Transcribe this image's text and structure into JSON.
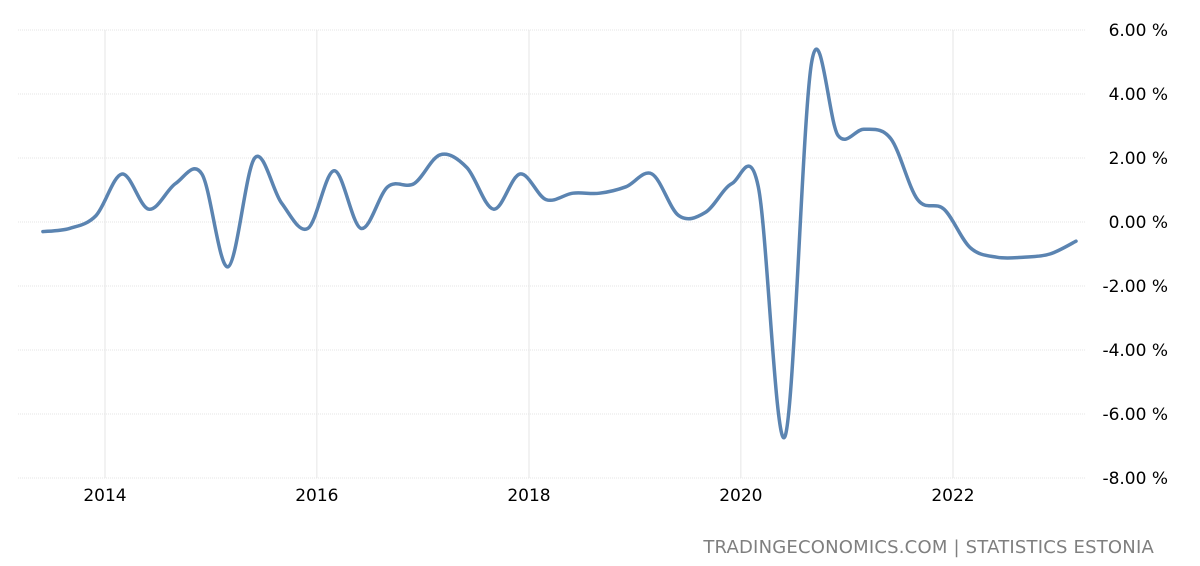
{
  "source": "TRADINGECONOMICS.COM | STATISTICS ESTONIA",
  "colors": {
    "line": "#5b84b1",
    "grid": "#e6e6e6",
    "tick_text": "#000000",
    "source_text": "#7f7f7f"
  },
  "chart_data": {
    "type": "line",
    "title": "",
    "xlabel": "",
    "ylabel": "",
    "grid": true,
    "x_ticks": [
      "2014",
      "2016",
      "2018",
      "2020",
      "2022"
    ],
    "y_ticks": [
      "6.00 %",
      "4.00 %",
      "2.00 %",
      "0.00 %",
      "-2.00 %",
      "-4.00 %",
      "-6.00 %",
      "-8.00 %"
    ],
    "ylim": [
      -8,
      6
    ],
    "xlim": [
      "2013-01-01",
      "2023-06-01"
    ],
    "series": [
      {
        "values": [
          {
            "x": "2013-06-01",
            "y": -0.3
          },
          {
            "x": "2013-09-01",
            "y": -0.2
          },
          {
            "x": "2013-12-01",
            "y": 0.2
          },
          {
            "x": "2014-03-01",
            "y": 1.5
          },
          {
            "x": "2014-06-01",
            "y": 0.4
          },
          {
            "x": "2014-09-01",
            "y": 1.2
          },
          {
            "x": "2014-12-01",
            "y": 1.5
          },
          {
            "x": "2015-03-01",
            "y": -1.4
          },
          {
            "x": "2015-06-01",
            "y": 2.0
          },
          {
            "x": "2015-09-01",
            "y": 0.6
          },
          {
            "x": "2015-12-01",
            "y": -0.2
          },
          {
            "x": "2016-03-01",
            "y": 1.6
          },
          {
            "x": "2016-06-01",
            "y": -0.2
          },
          {
            "x": "2016-09-01",
            "y": 1.1
          },
          {
            "x": "2016-12-01",
            "y": 1.2
          },
          {
            "x": "2017-03-01",
            "y": 2.1
          },
          {
            "x": "2017-06-01",
            "y": 1.7
          },
          {
            "x": "2017-09-01",
            "y": 0.4
          },
          {
            "x": "2017-12-01",
            "y": 1.5
          },
          {
            "x": "2018-03-01",
            "y": 0.7
          },
          {
            "x": "2018-06-01",
            "y": 0.9
          },
          {
            "x": "2018-09-01",
            "y": 0.9
          },
          {
            "x": "2018-12-01",
            "y": 1.1
          },
          {
            "x": "2019-03-01",
            "y": 1.5
          },
          {
            "x": "2019-06-01",
            "y": 0.2
          },
          {
            "x": "2019-09-01",
            "y": 0.3
          },
          {
            "x": "2019-12-01",
            "y": 1.2
          },
          {
            "x": "2020-03-01",
            "y": 1.1
          },
          {
            "x": "2020-06-01",
            "y": -6.7
          },
          {
            "x": "2020-09-01",
            "y": 5.0
          },
          {
            "x": "2020-12-01",
            "y": 2.7
          },
          {
            "x": "2021-03-01",
            "y": 2.9
          },
          {
            "x": "2021-06-01",
            "y": 2.6
          },
          {
            "x": "2021-09-01",
            "y": 0.7
          },
          {
            "x": "2021-12-01",
            "y": 0.4
          },
          {
            "x": "2022-03-01",
            "y": -0.8
          },
          {
            "x": "2022-06-01",
            "y": -1.1
          },
          {
            "x": "2022-09-01",
            "y": -1.1
          },
          {
            "x": "2022-12-01",
            "y": -1.0
          },
          {
            "x": "2023-03-01",
            "y": -0.6
          }
        ]
      }
    ]
  }
}
